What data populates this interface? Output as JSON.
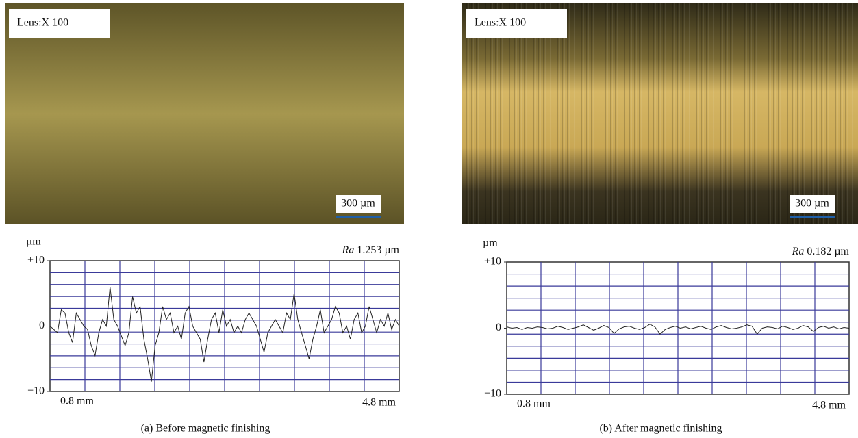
{
  "micrographs": [
    {
      "lens_label": "Lens:X 100",
      "scale_label": "300 µm"
    },
    {
      "lens_label": "Lens:X 100",
      "scale_label": "300 µm"
    }
  ],
  "chart_data": [
    {
      "type": "line",
      "caption": "(a) Before magnetic finishing",
      "unit_label": "µm",
      "ra_label": "Ra",
      "ra_value": "1.253 µm",
      "x_start_label": "0.8 mm",
      "x_end_label": "4.8 mm",
      "ylim": [
        -10,
        10
      ],
      "yticks": [
        {
          "value": 10,
          "label": "+10"
        },
        0,
        {
          "value": -10,
          "label": "−10"
        }
      ],
      "grid": true,
      "color": "#222222",
      "values": [
        0,
        -0.5,
        -1,
        2.5,
        2,
        -1,
        -2.5,
        2,
        1,
        0,
        -0.5,
        -3,
        -4.5,
        -1,
        1,
        0,
        6,
        1,
        0,
        -1.5,
        -3,
        -1,
        4.5,
        2,
        3,
        -2,
        -5,
        -8.5,
        -3,
        -1,
        3,
        1,
        2,
        -1,
        0,
        -2,
        2,
        3,
        0,
        -1,
        -2,
        -5.5,
        -2,
        1,
        2,
        -1,
        2.5,
        0,
        1,
        -1,
        0,
        -1,
        1,
        2,
        1,
        0,
        -2,
        -4,
        -1,
        0,
        1,
        0,
        -1,
        2,
        1,
        5,
        1,
        -1,
        -3,
        -5,
        -2,
        0,
        2.5,
        -1,
        0,
        1,
        3,
        2,
        -1,
        0,
        -2,
        1,
        2,
        -1,
        0,
        3,
        1,
        -1,
        1,
        0,
        2,
        -0.5,
        1,
        0
      ]
    },
    {
      "type": "line",
      "caption": "(b) After magnetic finishing",
      "unit_label": "µm",
      "ra_label": "Ra",
      "ra_value": "0.182 µm",
      "x_start_label": "0.8 mm",
      "x_end_label": "4.8 mm",
      "ylim": [
        -10,
        10
      ],
      "yticks": [
        {
          "value": 10,
          "label": "+10"
        },
        0,
        {
          "value": -10,
          "label": "−10"
        }
      ],
      "grid": true,
      "color": "#222222",
      "values": [
        0.2,
        0,
        0.1,
        -0.2,
        0.1,
        0,
        0.2,
        0.1,
        -0.1,
        0,
        0.3,
        0.1,
        -0.2,
        0,
        0.2,
        0.5,
        0.1,
        -0.3,
        0,
        0.4,
        0.1,
        -0.8,
        -0.1,
        0.2,
        0.3,
        0,
        -0.2,
        0.1,
        0.6,
        0.2,
        -0.9,
        -0.2,
        0.1,
        0.3,
        0,
        0.2,
        -0.1,
        0.1,
        0.3,
        0,
        -0.2,
        0.2,
        0.4,
        0.1,
        -0.1,
        0,
        0.2,
        0.5,
        0.3,
        -0.9,
        0,
        0.2,
        0.1,
        -0.1,
        0.3,
        0.1,
        -0.2,
        0,
        0.4,
        0.2,
        -0.5,
        0.1,
        0.3,
        0,
        0.2,
        -0.1,
        0.1,
        0
      ]
    }
  ]
}
